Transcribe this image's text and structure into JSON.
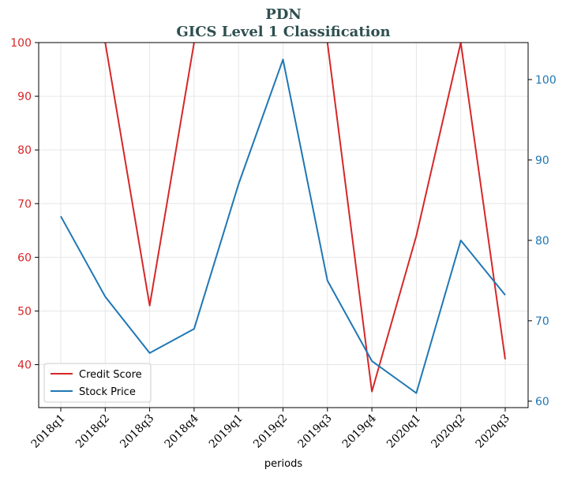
{
  "chart_data": {
    "type": "line",
    "title": "PDN",
    "subtitle": "GICS Level 1 Classification",
    "xlabel": "periods",
    "ylabel_left": "",
    "ylabel_right": "",
    "categories": [
      "2018q1",
      "2018q2",
      "2018q3",
      "2018q4",
      "2019q1",
      "2019q2",
      "2019q3",
      "2019q4",
      "2020q1",
      "2020q2",
      "2020q3"
    ],
    "left_axis": {
      "ylim": [
        32,
        100
      ],
      "ticks": [
        40,
        50,
        60,
        70,
        80,
        90,
        100
      ],
      "color": "#d62728"
    },
    "right_axis": {
      "ylim": [
        59.2,
        104.6
      ],
      "ticks": [
        60,
        70,
        80,
        90,
        100
      ],
      "color": "#1f77b4"
    },
    "series": [
      {
        "name": "Credit Score",
        "axis": "left",
        "color": "#d62728",
        "values": [
          null,
          100,
          51,
          100,
          null,
          null,
          100,
          35,
          64,
          100,
          41
        ]
      },
      {
        "name": "Stock Price",
        "axis": "right",
        "color": "#1f77b4",
        "values": [
          83,
          73,
          66,
          69,
          87,
          102.5,
          75,
          65,
          61,
          80,
          73.2
        ]
      }
    ],
    "grid": true,
    "legend_position": "lower-left"
  }
}
